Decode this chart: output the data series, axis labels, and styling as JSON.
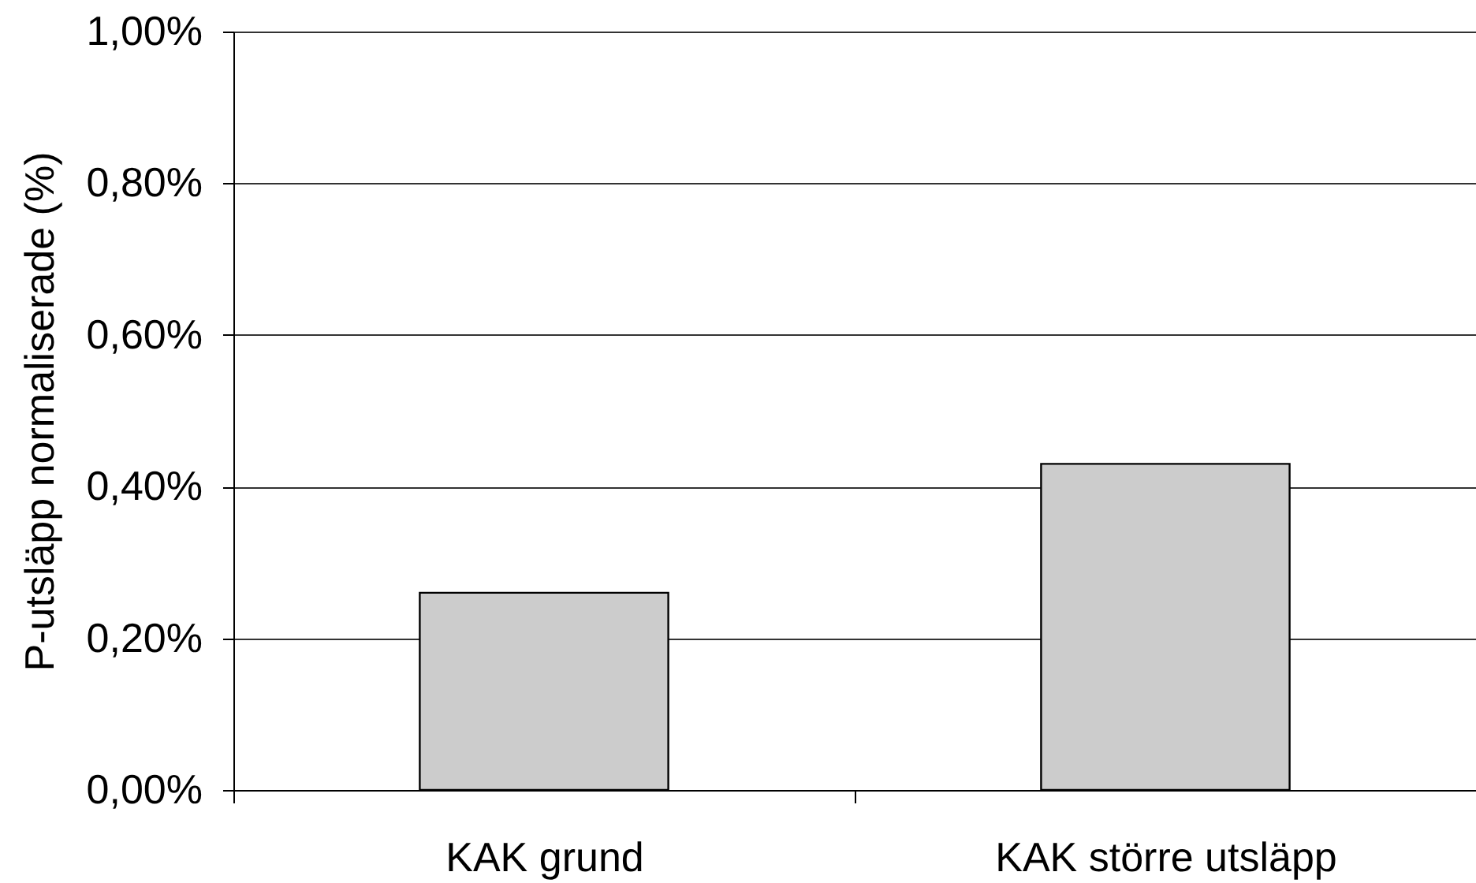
{
  "chart_data": {
    "type": "bar",
    "ylabel": "P-utsläpp normaliserade (%)",
    "categories": [
      "KAK grund",
      "KAK större utsläpp"
    ],
    "values": [
      0.26,
      0.43
    ],
    "color": "#cccccc",
    "ylim": [
      0,
      1.0
    ],
    "yticks": [
      {
        "value": 0,
        "label": "0,00%"
      },
      {
        "value": 0.2,
        "label": "0,20%"
      },
      {
        "value": 0.4,
        "label": "0,40%"
      },
      {
        "value": 0.6,
        "label": "0,60%"
      },
      {
        "value": 0.8,
        "label": "0,80%"
      },
      {
        "value": 1.0,
        "label": "1,00%"
      }
    ],
    "grid": "y"
  }
}
